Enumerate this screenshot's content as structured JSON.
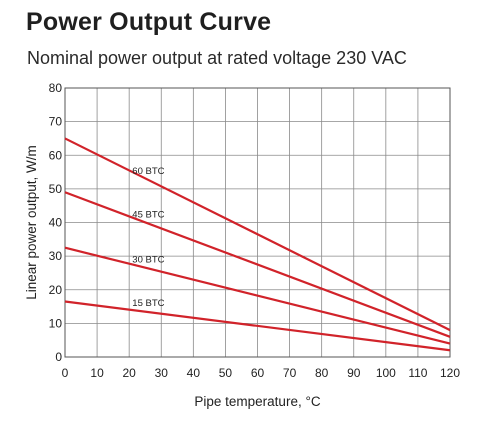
{
  "chart_data": {
    "type": "line",
    "title": "Power Output Curve",
    "subtitle": "Nominal power output at rated voltage 230 VAC",
    "xlabel": "Pipe temperature, °C",
    "ylabel": "Linear power output, W/m",
    "xlim": [
      0,
      120
    ],
    "ylim": [
      0,
      80
    ],
    "x_ticks": [
      0,
      10,
      20,
      30,
      40,
      50,
      60,
      70,
      80,
      90,
      100,
      110,
      120
    ],
    "y_ticks": [
      0,
      10,
      20,
      30,
      40,
      50,
      60,
      70,
      80
    ],
    "grid": true,
    "line_color": "#d1232a",
    "series": [
      {
        "name": "60 BTC",
        "x": [
          0,
          120
        ],
        "y": [
          65,
          8
        ]
      },
      {
        "name": "45 BTC",
        "x": [
          0,
          120
        ],
        "y": [
          49,
          6
        ]
      },
      {
        "name": "30 BTC",
        "x": [
          0,
          120
        ],
        "y": [
          32.5,
          4
        ]
      },
      {
        "name": "15 BTC",
        "x": [
          0,
          120
        ],
        "y": [
          16.5,
          2
        ]
      }
    ]
  }
}
